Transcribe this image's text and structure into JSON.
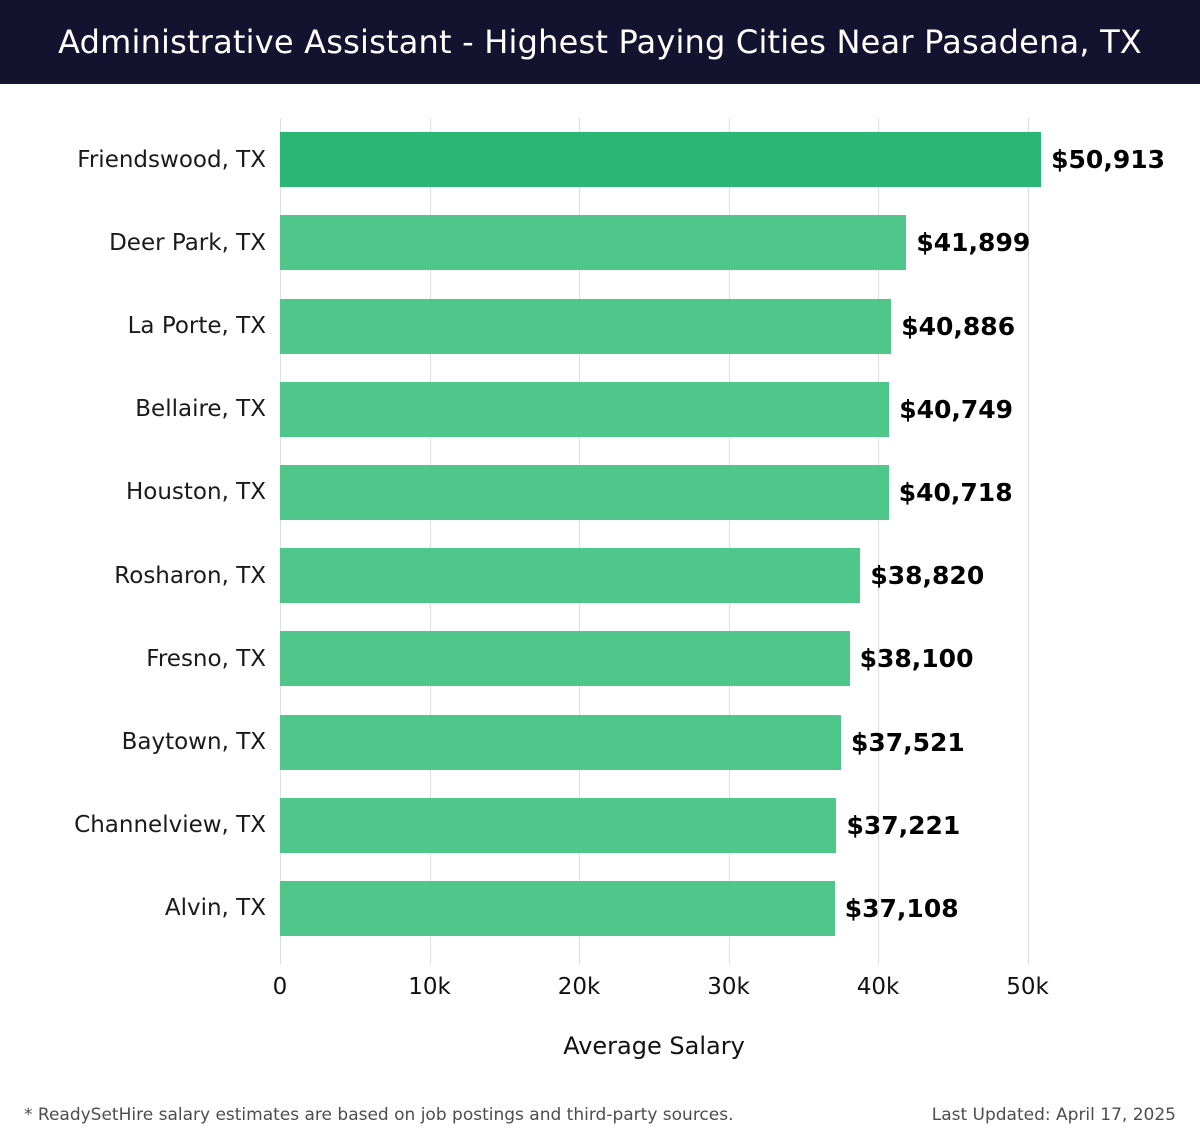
{
  "header": {
    "title": "Administrative Assistant - Highest Paying Cities Near Pasadena, TX"
  },
  "chart_data": {
    "type": "bar",
    "orientation": "horizontal",
    "title": "Administrative Assistant - Highest Paying Cities Near Pasadena, TX",
    "categories": [
      "Friendswood, TX",
      "Deer Park, TX",
      "La Porte, TX",
      "Bellaire, TX",
      "Houston, TX",
      "Rosharon, TX",
      "Fresno, TX",
      "Baytown, TX",
      "Channelview, TX",
      "Alvin, TX"
    ],
    "values": [
      50913,
      41899,
      40886,
      40749,
      40718,
      38820,
      38100,
      37521,
      37221,
      37108
    ],
    "value_labels": [
      "$50,913",
      "$41,899",
      "$40,886",
      "$40,749",
      "$40,718",
      "$38,820",
      "$38,100",
      "$37,521",
      "$37,221",
      "$37,108"
    ],
    "xlabel": "Average Salary",
    "x_ticks": [
      {
        "value": 0,
        "label": "0"
      },
      {
        "value": 10000,
        "label": "10k"
      },
      {
        "value": 20000,
        "label": "20k"
      },
      {
        "value": 30000,
        "label": "30k"
      },
      {
        "value": 40000,
        "label": "40k"
      },
      {
        "value": 50000,
        "label": "50k"
      }
    ],
    "xlim": [
      0,
      52200
    ],
    "grid": true,
    "legend": "none",
    "colors": {
      "highlight_bar": "#2bb674",
      "default_bar": "#50c78a",
      "gridline": "#dedede",
      "header_background": "#14132f",
      "title_text": "#ffffff",
      "value_text": "#000000",
      "footer_text": "#4d4d4d"
    },
    "highlight_index": 0
  },
  "footer": {
    "note": "* ReadySetHire salary estimates are based on job postings and third-party sources.",
    "last_updated": "Last Updated: April 17, 2025"
  }
}
